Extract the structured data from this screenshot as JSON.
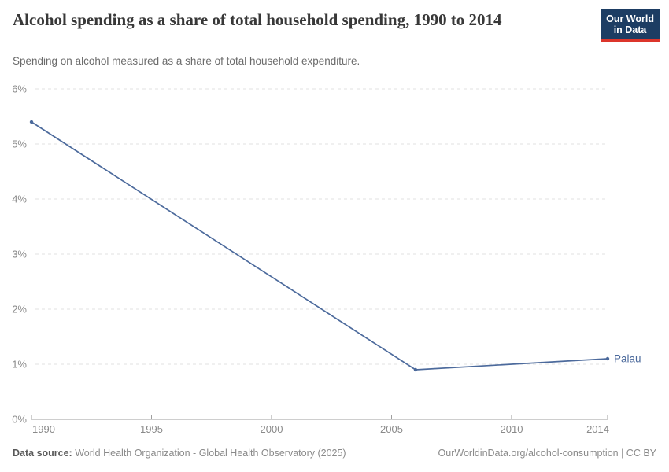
{
  "header": {
    "title": "Alcohol spending as a share of total household spending, 1990 to 2014",
    "subtitle": "Spending on alcohol measured as a share of total household expenditure.",
    "logo": {
      "line1": "Our World",
      "line2": "in Data"
    }
  },
  "chart_data": {
    "type": "line",
    "title": "Alcohol spending as a share of total household spending, 1990 to 2014",
    "xlabel": "",
    "ylabel": "",
    "xlim": [
      1990,
      2014
    ],
    "ylim": [
      0,
      6
    ],
    "grid": "horizontal-dashed",
    "legend": "line-end-label",
    "x_ticks": [
      {
        "value": 1990,
        "label": "1990"
      },
      {
        "value": 1995,
        "label": "1995"
      },
      {
        "value": 2000,
        "label": "2000"
      },
      {
        "value": 2005,
        "label": "2005"
      },
      {
        "value": 2010,
        "label": "2010"
      },
      {
        "value": 2014,
        "label": "2014"
      }
    ],
    "y_ticks": [
      {
        "value": 0,
        "label": "0%"
      },
      {
        "value": 1,
        "label": "1%"
      },
      {
        "value": 2,
        "label": "2%"
      },
      {
        "value": 3,
        "label": "3%"
      },
      {
        "value": 4,
        "label": "4%"
      },
      {
        "value": 5,
        "label": "5%"
      },
      {
        "value": 6,
        "label": "6%"
      }
    ],
    "series": [
      {
        "name": "Palau",
        "color": "#4c6a9c",
        "points": [
          [
            1990,
            5.4
          ],
          [
            2006,
            0.9
          ],
          [
            2014,
            1.1
          ]
        ]
      }
    ]
  },
  "footer": {
    "datasource_label": "Data source:",
    "datasource_value": "World Health Organization - Global Health Observatory (2025)",
    "attribution": "OurWorldinData.org/alcohol-consumption | CC BY"
  },
  "colors": {
    "accent": "#4c6a9c",
    "logo_navy": "#1d3d63",
    "logo_red": "#dc352b",
    "grid": "#e2e2e2",
    "axis": "#9e9e9e",
    "tick_label": "#8a8a8a",
    "title_text": "#383838",
    "subtitle_text": "#6b6b6b"
  }
}
